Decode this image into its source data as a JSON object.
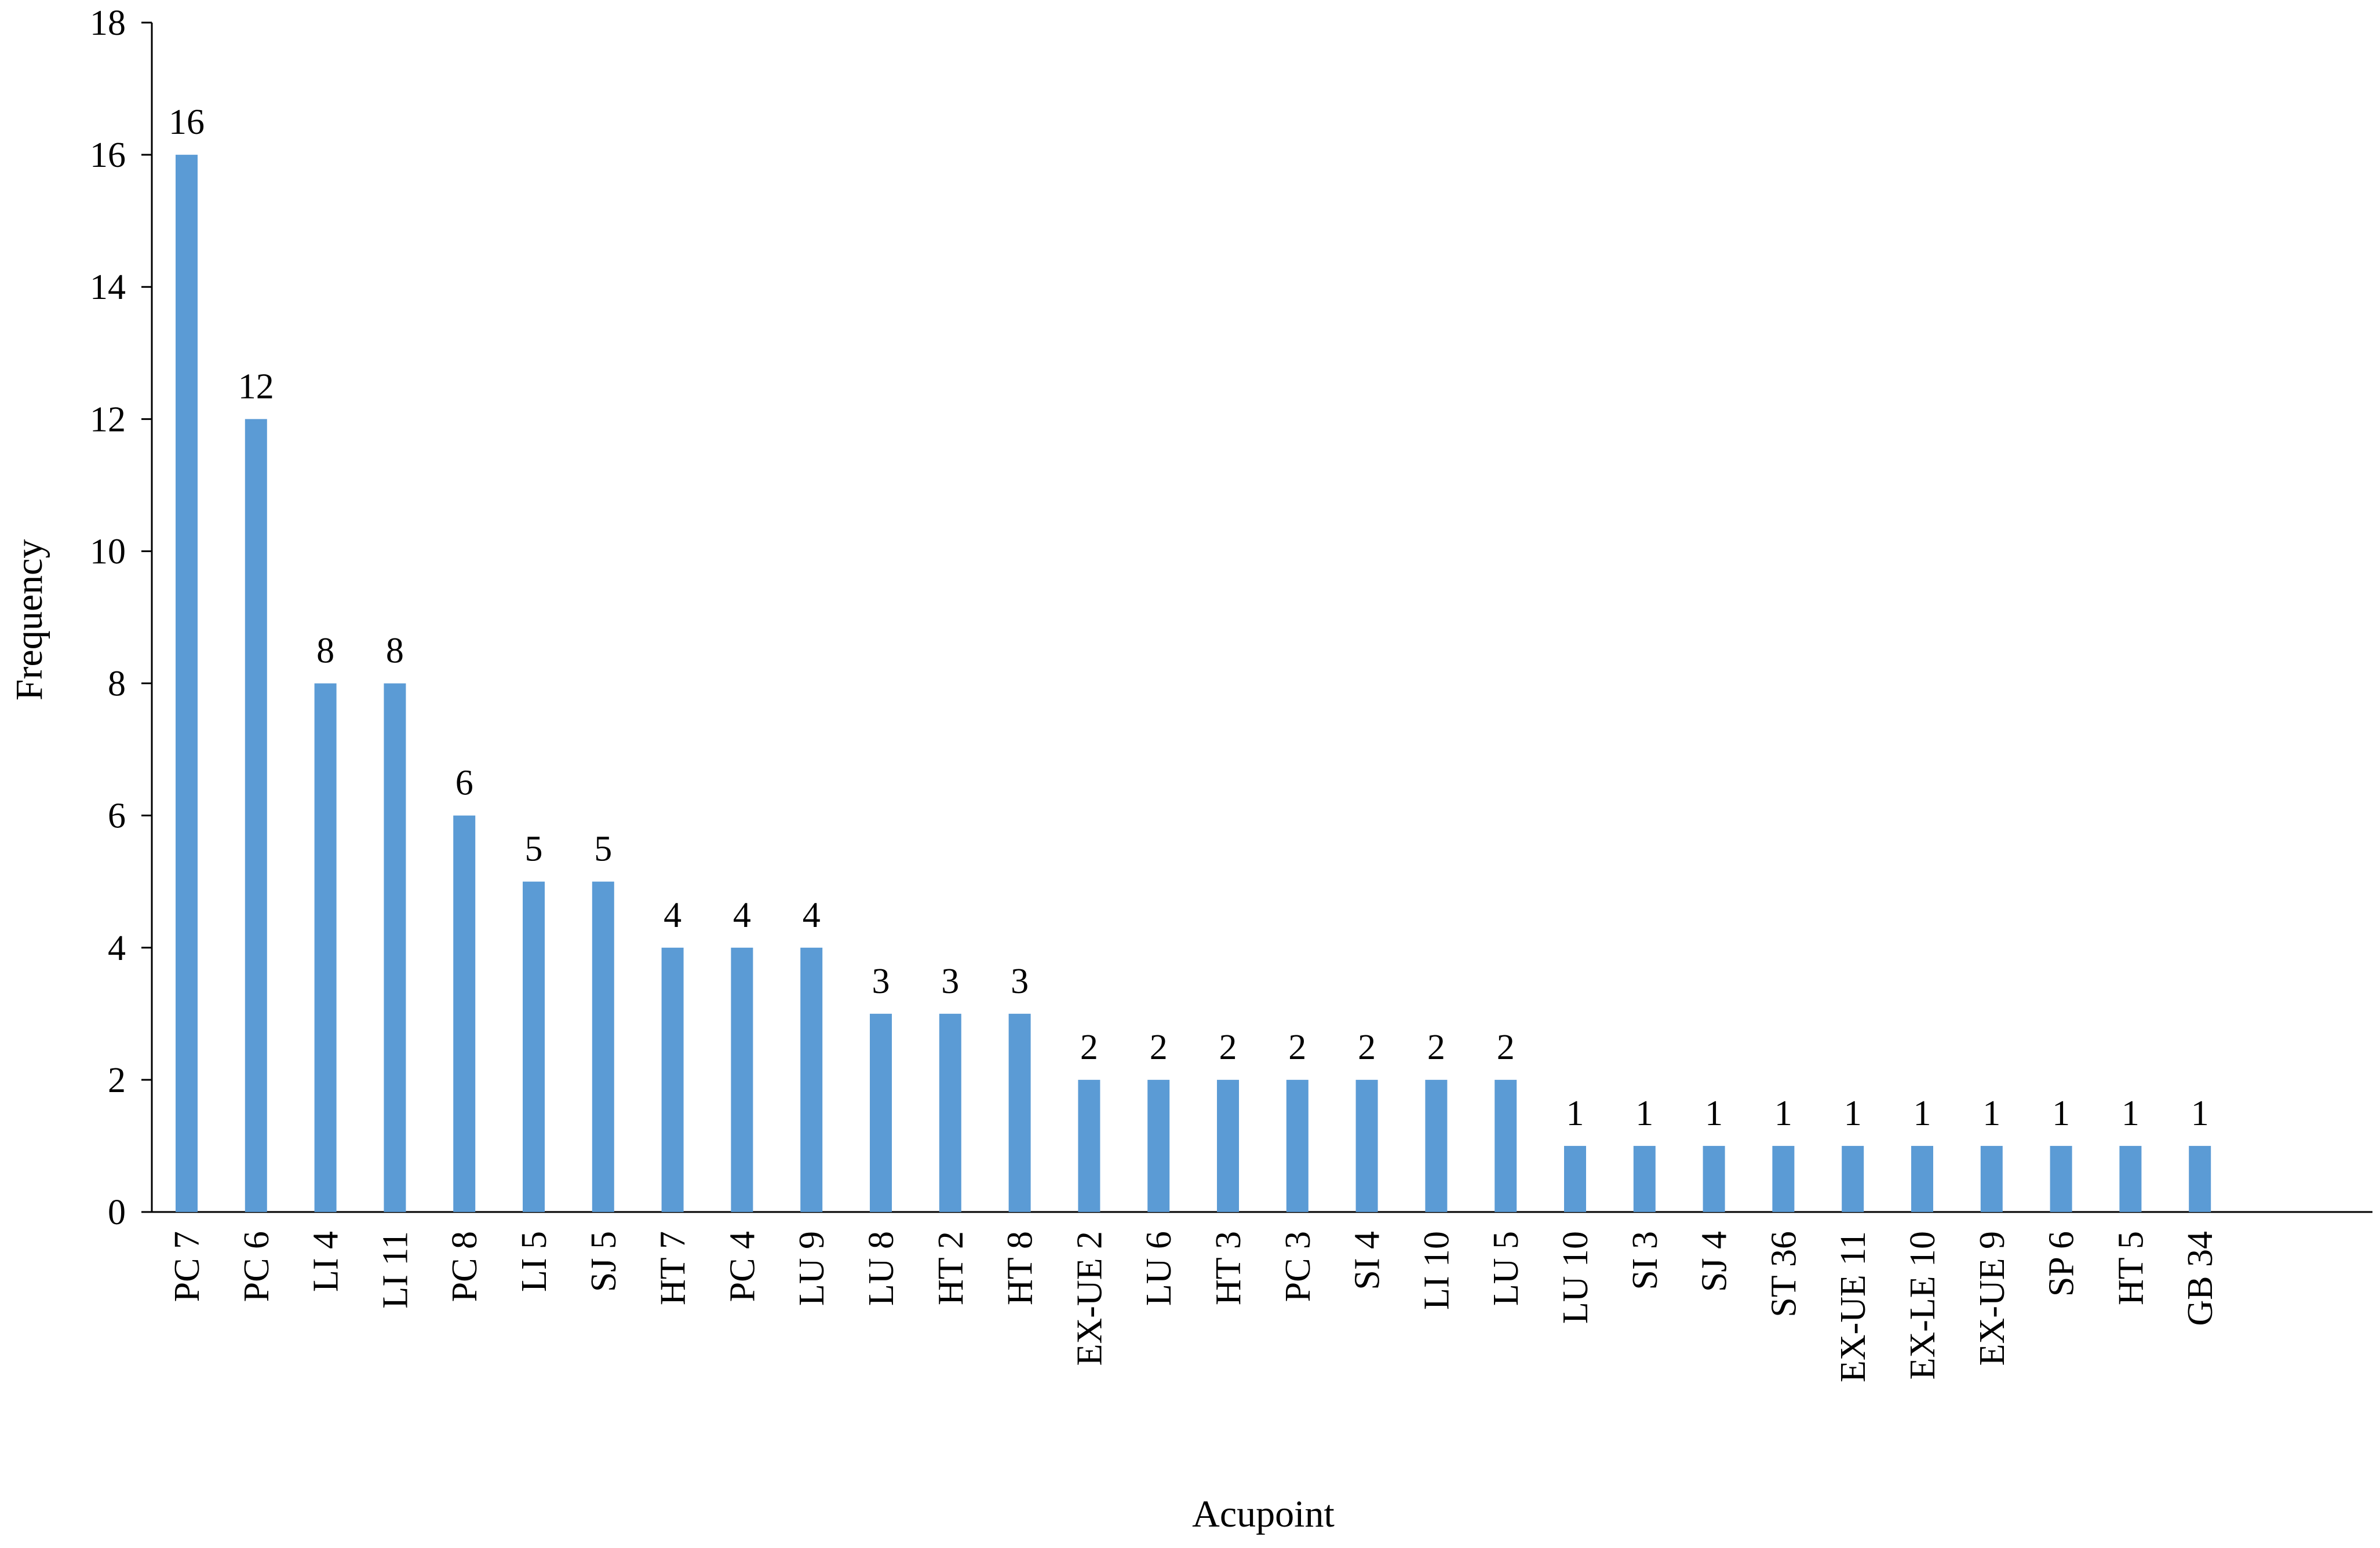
{
  "chart_data": {
    "type": "bar",
    "title": "",
    "xlabel": "Acupoint",
    "ylabel": "Frequency",
    "ylim": [
      0,
      18
    ],
    "yticks": [
      0,
      2,
      4,
      6,
      8,
      10,
      12,
      14,
      16,
      18
    ],
    "grid": false,
    "legend": "none",
    "bar_color": "#5B9BD5",
    "categories": [
      "PC 7",
      "PC 6",
      "LI 4",
      "LI 11",
      "PC 8",
      "LI 5",
      "SJ 5",
      "HT 7",
      "PC 4",
      "LU 9",
      "LU 8",
      "HT 2",
      "HT 8",
      "EX-UE 2",
      "LU 6",
      "HT 3",
      "PC 3",
      "SI 4",
      "LI 10",
      "LU 5",
      "LU 10",
      "SI 3",
      "SJ 4",
      "ST 36",
      "EX-UE 11",
      "EX-LE 10",
      "EX-UE 9",
      "SP 6",
      "HT 5",
      "GB 34"
    ],
    "values": [
      16,
      12,
      8,
      8,
      6,
      5,
      5,
      4,
      4,
      4,
      3,
      3,
      3,
      2,
      2,
      2,
      2,
      2,
      2,
      2,
      1,
      1,
      1,
      1,
      1,
      1,
      1,
      1,
      1,
      1
    ],
    "data_labels": [
      "16",
      "12",
      "8",
      "8",
      "6",
      "5",
      "5",
      "4",
      "4",
      "4",
      "3",
      "3",
      "3",
      "2",
      "2",
      "2",
      "2",
      "2",
      "2",
      "2",
      "1",
      "1",
      "1",
      "1",
      "1",
      "1",
      "1",
      "1",
      "1",
      "1"
    ]
  }
}
